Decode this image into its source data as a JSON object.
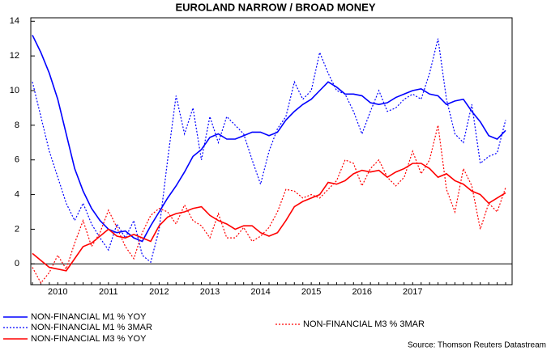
{
  "chart_data": {
    "type": "line",
    "title": "EUROLAND NARROW / BROAD MONEY",
    "source": "Source: Thomson Reuters Datastream",
    "categories": [
      null,
      null,
      null,
      "2010",
      null,
      null,
      null,
      null,
      null,
      "2011",
      null,
      null,
      null,
      null,
      null,
      "2012",
      null,
      null,
      null,
      null,
      null,
      "2013",
      null,
      null,
      null,
      null,
      null,
      "2014",
      null,
      null,
      null,
      null,
      null,
      "2015",
      null,
      null,
      null,
      null,
      null,
      "2016",
      null,
      null,
      null,
      null,
      null,
      "2017",
      null,
      null,
      null,
      null,
      null,
      null,
      null,
      null,
      null,
      null,
      null
    ],
    "ylim": [
      -1.2,
      14.2
    ],
    "yticks": [
      0,
      2,
      4,
      6,
      8,
      10,
      12,
      14
    ],
    "zero_line": true,
    "series": [
      {
        "name": "NON-FINANCIAL M1 % YOY",
        "color": "#0000ff",
        "dashed": false,
        "values": [
          13.2,
          12.2,
          11,
          9.5,
          7.5,
          5.5,
          4.2,
          3.2,
          2.5,
          2,
          1.8,
          1.9,
          1.5,
          1.3,
          2.2,
          3,
          3.8,
          4.5,
          5.3,
          6.2,
          6.6,
          7.3,
          7.5,
          7.2,
          7.2,
          7.4,
          7.6,
          7.6,
          7.4,
          7.6,
          8.3,
          8.8,
          9.2,
          9.5,
          10,
          10.5,
          10.2,
          9.8,
          9.8,
          9.7,
          9.3,
          9.2,
          9.3,
          9.6,
          9.8,
          10,
          10.1,
          9.8,
          9.7,
          9.2,
          9.4,
          9.5,
          8.8,
          8.2,
          7.4,
          7.2,
          7.7
        ]
      },
      {
        "name": "NON-FINANCIAL M1 % 3MAR",
        "color": "#0000ff",
        "dashed": true,
        "values": [
          10.5,
          8.5,
          6.5,
          5,
          3.5,
          2.5,
          3.5,
          2.3,
          1.5,
          0.8,
          2.3,
          1.5,
          2.5,
          0.5,
          0.1,
          2,
          6,
          9.7,
          7.5,
          9,
          6,
          8.5,
          7,
          8.5,
          8,
          7.5,
          6,
          4.6,
          6.5,
          7.8,
          8.5,
          10.5,
          9.5,
          10,
          12.2,
          11,
          10,
          9.8,
          8.8,
          7.5,
          8.8,
          10,
          8.8,
          9,
          9.5,
          9.8,
          9.5,
          11,
          13,
          9.5,
          7.5,
          7,
          9.2,
          5.8,
          6.2,
          6.4,
          8.3
        ]
      },
      {
        "name": "NON-FINANCIAL M3 % YOY",
        "color": "#ff0000",
        "dashed": false,
        "values": [
          0.6,
          0.2,
          -0.2,
          -0.3,
          -0.4,
          0.3,
          1,
          1.2,
          1.6,
          2,
          1.6,
          1.5,
          1.7,
          1.5,
          1.3,
          2.2,
          2.7,
          2.9,
          3,
          3.2,
          3.3,
          2.8,
          2.5,
          2.3,
          2,
          2.2,
          2.2,
          1.8,
          1.6,
          1.8,
          2.5,
          3.3,
          3.6,
          3.8,
          4,
          4.7,
          4.6,
          4.8,
          5.2,
          5.4,
          5.3,
          5.4,
          5,
          5.3,
          5.5,
          5.8,
          5.8,
          5.5,
          5,
          5.2,
          4.8,
          4.6,
          4.2,
          4,
          3.5,
          3.8,
          4.1
        ]
      },
      {
        "name": "NON-FINANCIAL M3 % 3MAR",
        "color": "#ff0000",
        "dashed": true,
        "values": [
          -0.2,
          -1.1,
          -0.5,
          0.5,
          -0.3,
          1.2,
          2.5,
          1,
          1.8,
          3.1,
          2.1,
          1,
          0.3,
          1.8,
          2.8,
          3.2,
          3,
          2.3,
          3.4,
          2.5,
          2.2,
          1.5,
          2.9,
          1.5,
          1.5,
          2.1,
          1.3,
          1.6,
          2.1,
          3,
          4.3,
          4.2,
          3.8,
          4,
          3.8,
          4.3,
          4.8,
          6,
          5.8,
          4.5,
          5.5,
          6,
          5,
          4.5,
          5,
          6.5,
          5.2,
          6,
          8,
          4.3,
          3,
          5.5,
          4.5,
          2,
          3.5,
          3,
          4.4
        ]
      }
    ]
  }
}
